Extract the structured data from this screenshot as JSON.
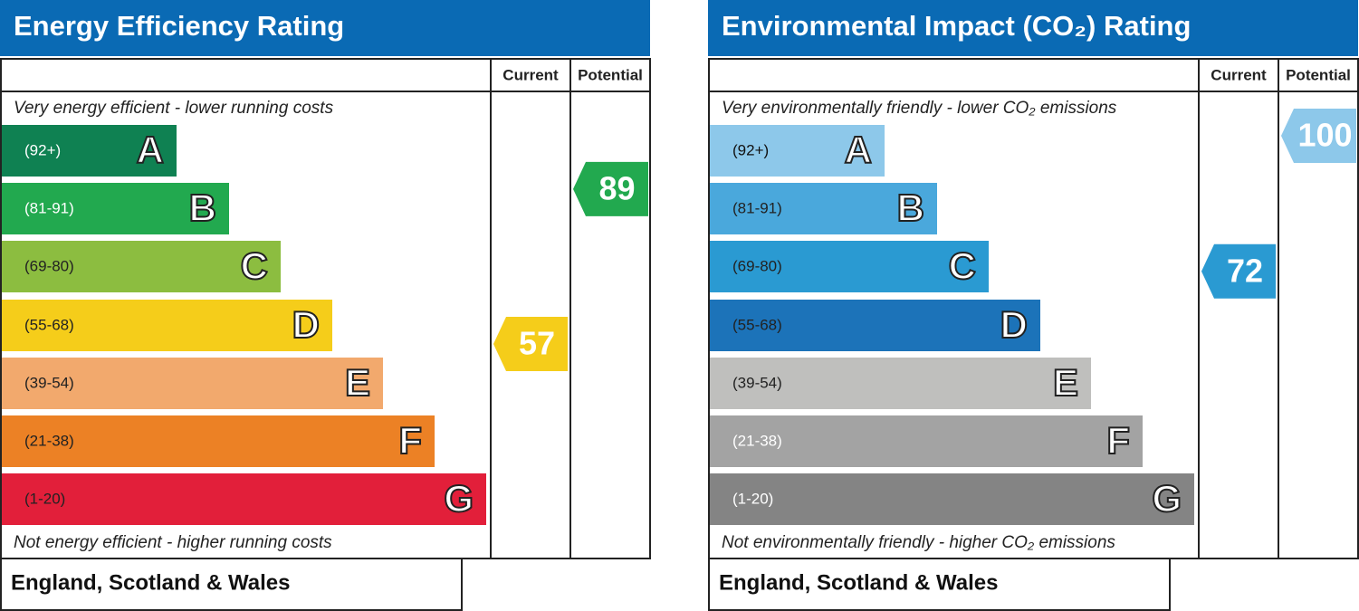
{
  "panels": [
    {
      "title": "Energy Efficiency Rating",
      "columns": [
        "Current",
        "Potential"
      ],
      "top_note": "Very energy efficient - lower running costs",
      "bottom_note": "Not energy efficient - higher running costs",
      "footer": "England, Scotland & Wales",
      "bands": [
        {
          "range": "(92+)",
          "letter": "A",
          "color": "#0f8152",
          "label_color": "#ffffff"
        },
        {
          "range": "(81-91)",
          "letter": "B",
          "color": "#22a94f",
          "label_color": "#ffffff"
        },
        {
          "range": "(69-80)",
          "letter": "C",
          "color": "#8cbd40",
          "label_color": "#222222"
        },
        {
          "range": "(55-68)",
          "letter": "D",
          "color": "#f5cd1a",
          "label_color": "#222222"
        },
        {
          "range": "(39-54)",
          "letter": "E",
          "color": "#f2a96d",
          "label_color": "#222222"
        },
        {
          "range": "(21-38)",
          "letter": "F",
          "color": "#ec8125",
          "label_color": "#222222"
        },
        {
          "range": "(1-20)",
          "letter": "G",
          "color": "#e21f3a",
          "label_color": "#222222"
        }
      ],
      "current": {
        "value": 57,
        "color": "#f5cd1a"
      },
      "potential": {
        "value": 89,
        "color": "#22a94f"
      }
    },
    {
      "title": "Environmental Impact (CO₂) Rating",
      "columns": [
        "Current",
        "Potential"
      ],
      "top_note": "Very environmentally friendly - lower CO₂ emissions",
      "bottom_note": "Not environmentally friendly - higher CO₂ emissions",
      "footer": "England, Scotland & Wales",
      "bands": [
        {
          "range": "(92+)",
          "letter": "A",
          "color": "#8dc8ea",
          "label_color": "#111111"
        },
        {
          "range": "(81-91)",
          "letter": "B",
          "color": "#4aa8dc",
          "label_color": "#222222"
        },
        {
          "range": "(69-80)",
          "letter": "C",
          "color": "#2a9ad2",
          "label_color": "#222222"
        },
        {
          "range": "(55-68)",
          "letter": "D",
          "color": "#1c73b9",
          "label_color": "#222222"
        },
        {
          "range": "(39-54)",
          "letter": "E",
          "color": "#bfbfbd",
          "label_color": "#222222"
        },
        {
          "range": "(21-38)",
          "letter": "F",
          "color": "#a3a3a3",
          "label_color": "#ffffff"
        },
        {
          "range": "(1-20)",
          "letter": "G",
          "color": "#848484",
          "label_color": "#ffffff"
        }
      ],
      "current": {
        "value": 72,
        "color": "#2a9ad2"
      },
      "potential": {
        "value": 100,
        "color": "#8dc8ea"
      }
    }
  ]
}
